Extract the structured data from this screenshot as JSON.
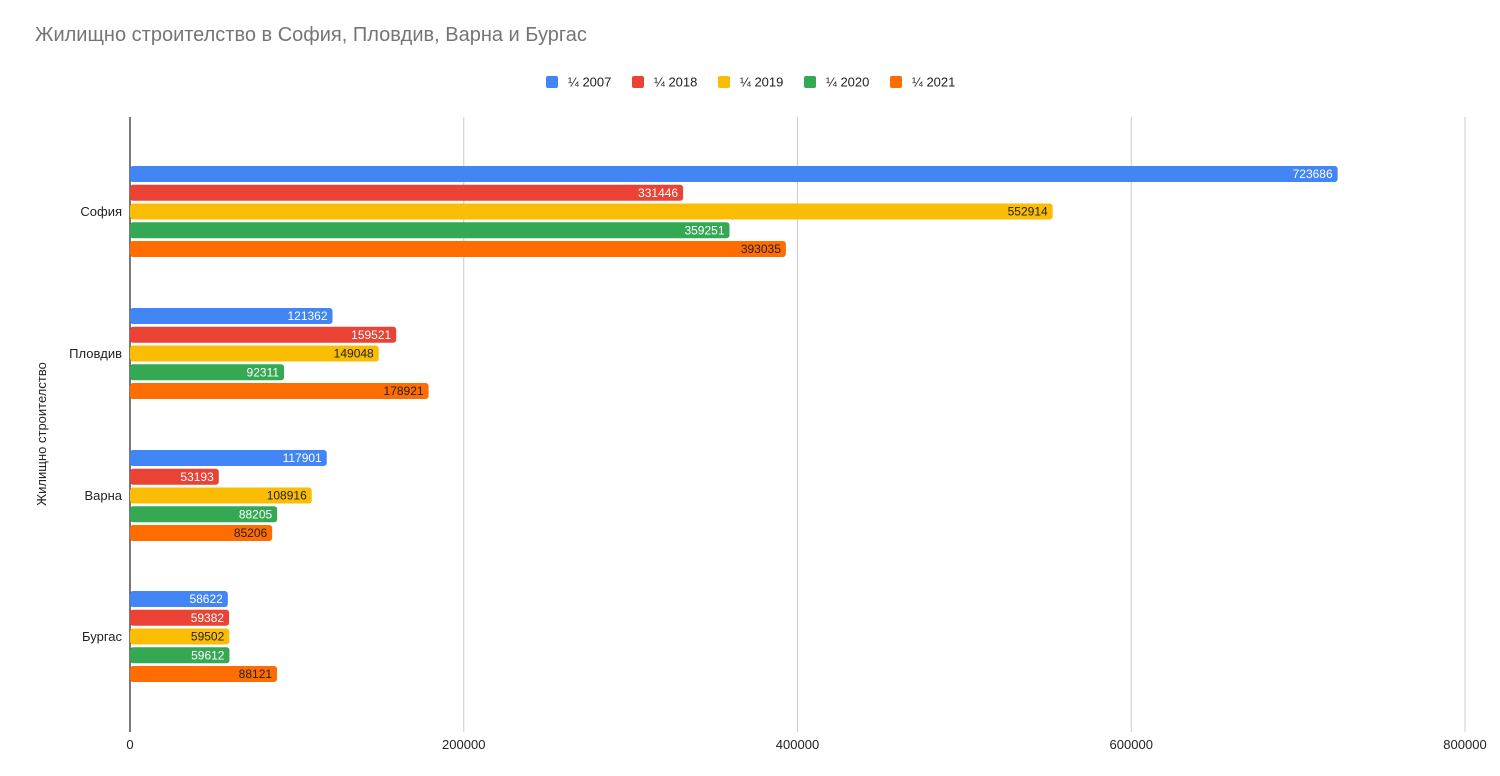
{
  "chart_data": {
    "type": "bar",
    "orientation": "horizontal",
    "title": "Жилищно строителство в София, Пловдив, Варна и Бургас",
    "ylabel": "Жилищно строителство",
    "xlabel": "",
    "categories": [
      "София",
      "Пловдив",
      "Варна",
      "Бургас"
    ],
    "series": [
      {
        "name": "¼ 2007",
        "color": "#4285f4",
        "values": [
          723686,
          121362,
          117901,
          58622
        ]
      },
      {
        "name": "¼ 2018",
        "color": "#ea4335",
        "values": [
          331446,
          159521,
          53193,
          59382
        ]
      },
      {
        "name": "¼ 2019",
        "color": "#fbbc04",
        "values": [
          552914,
          149048,
          108916,
          59502
        ]
      },
      {
        "name": "¼ 2020",
        "color": "#34a853",
        "values": [
          359251,
          92311,
          88205,
          59612
        ]
      },
      {
        "name": "¼ 2021",
        "color": "#ff6d01",
        "values": [
          393035,
          178921,
          85206,
          88121
        ]
      }
    ],
    "xlim": [
      0,
      800000
    ],
    "xticks": [
      "0",
      "200000",
      "400000",
      "600000",
      "800000"
    ],
    "grid": true,
    "legend_position": "top"
  }
}
